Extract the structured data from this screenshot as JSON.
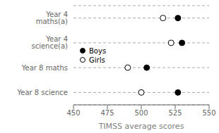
{
  "chart_data": {
    "type": "scatter",
    "categories": [
      "Year 4 maths(a)",
      "Year 4 science(a)",
      "Year 8 maths",
      "Year 8 science"
    ],
    "series": [
      {
        "name": "Boys",
        "color": "black",
        "values": [
          527,
          530,
          504,
          527
        ]
      },
      {
        "name": "Girls",
        "color": "white",
        "values": [
          516,
          522,
          490,
          500
        ]
      }
    ],
    "xlabel": "TIMSS average scores",
    "xlim": [
      450,
      550
    ],
    "xticks": [
      450,
      475,
      500,
      525,
      550
    ],
    "grid": true,
    "legend": "left"
  }
}
